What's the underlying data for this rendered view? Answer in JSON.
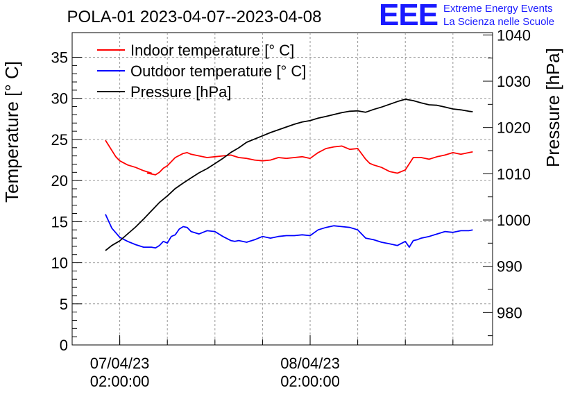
{
  "header": {
    "title": "POLA-01 2023-04-07--2023-04-08",
    "logo_mark": "EEE",
    "logo_line1": "Extreme Energy Events",
    "logo_line2": "La Scienza nelle Scuole"
  },
  "chart_data": {
    "type": "line",
    "ylabel_left": "Temperature [° C]",
    "ylabel_right": "Pressure [hPa]",
    "x_ticks": [
      {
        "line1": "07/04/23",
        "line2": "02:00:00",
        "hours": 0
      },
      {
        "line1": "08/04/23",
        "line2": "02:00:00",
        "hours": 24
      }
    ],
    "x_range_hours": [
      -6,
      47
    ],
    "y_left_range": [
      0,
      38
    ],
    "y_left_ticks": [
      0,
      5,
      10,
      15,
      20,
      25,
      30,
      35
    ],
    "y_right_range": [
      973,
      1040.5
    ],
    "y_right_ticks": [
      980,
      990,
      1000,
      1010,
      1020,
      1030,
      1040
    ],
    "grid": true,
    "legend_position": "top-left",
    "colors": {
      "indoor": "#ff0000",
      "outdoor": "#0000ff",
      "pressure": "#000000"
    },
    "series": [
      {
        "name": "Indoor temperature [° C]",
        "axis": "left",
        "x": [
          -1.8,
          -0.5,
          0,
          1,
          2,
          3,
          4,
          3.5,
          4.5,
          5,
          5.5,
          6,
          7,
          8,
          8.5,
          9,
          10,
          11,
          12,
          13,
          14,
          15,
          16,
          17,
          18,
          19,
          20,
          21,
          22,
          23,
          24,
          25,
          26,
          27,
          28,
          29,
          30,
          31,
          31.5,
          32,
          33,
          34,
          35,
          36,
          37,
          38,
          39,
          40,
          41,
          42,
          43,
          44,
          44.5
        ],
        "values": [
          24.9,
          22.9,
          22.4,
          21.9,
          21.6,
          21.2,
          20.9,
          20.9,
          20.7,
          21.0,
          21.5,
          21.8,
          22.8,
          23.3,
          23.4,
          23.2,
          23.0,
          22.8,
          22.9,
          23.0,
          23.1,
          22.8,
          22.7,
          22.5,
          22.4,
          22.5,
          22.8,
          22.7,
          22.8,
          22.9,
          22.7,
          23.4,
          23.9,
          24.1,
          24.2,
          23.8,
          23.9,
          22.6,
          22.1,
          21.9,
          21.6,
          21.1,
          20.9,
          21.3,
          22.8,
          22.8,
          22.6,
          22.9,
          23.1,
          23.4,
          23.2,
          23.4,
          23.5
        ]
      },
      {
        "name": "Outdoor temperature [° C]",
        "axis": "left",
        "x": [
          -1.8,
          -1,
          0,
          1,
          2,
          3,
          4,
          4.5,
          5,
          5.5,
          6,
          6.5,
          7,
          7.5,
          8,
          8.5,
          9,
          10,
          11,
          12,
          13,
          14,
          14.5,
          15,
          16,
          17,
          18,
          19,
          20,
          21,
          22,
          23,
          24,
          25,
          26,
          27,
          28,
          29,
          30,
          31,
          32,
          33,
          34,
          35,
          36,
          36.5,
          37,
          37.5,
          38,
          39,
          40,
          41,
          42,
          43,
          44,
          44.5
        ],
        "values": [
          15.9,
          14.2,
          13.1,
          12.6,
          12.2,
          11.9,
          11.9,
          11.8,
          12.1,
          12.6,
          12.4,
          13.2,
          13.4,
          14.1,
          14.4,
          14.3,
          13.8,
          13.5,
          13.9,
          13.8,
          13.2,
          12.7,
          12.6,
          12.7,
          12.5,
          12.8,
          13.2,
          13.0,
          13.2,
          13.3,
          13.3,
          13.4,
          13.3,
          14.0,
          14.3,
          14.5,
          14.4,
          14.3,
          14.0,
          13.0,
          12.8,
          12.5,
          12.3,
          12.1,
          12.6,
          11.9,
          12.7,
          12.8,
          13.0,
          13.2,
          13.5,
          13.8,
          13.7,
          13.9,
          13.9,
          14.0
        ]
      },
      {
        "name": "Pressure [hPa]",
        "axis": "right",
        "x": [
          -1.8,
          -1,
          0,
          1,
          2,
          3,
          4,
          5,
          6,
          7,
          8,
          9,
          10,
          11,
          12,
          13,
          14,
          15,
          16,
          17,
          18,
          19,
          20,
          21,
          22,
          23,
          24,
          25,
          26,
          27,
          28,
          29,
          30,
          31,
          32,
          33,
          34,
          35,
          36,
          37,
          38,
          39,
          40,
          41,
          42,
          43,
          44,
          44.5
        ],
        "values": [
          993.4,
          994.5,
          995.5,
          997.0,
          998.5,
          1000.2,
          1002.0,
          1003.8,
          1005.2,
          1006.8,
          1008.0,
          1009.1,
          1010.2,
          1011.1,
          1012.2,
          1013.3,
          1014.6,
          1015.6,
          1016.8,
          1017.5,
          1018.2,
          1018.9,
          1019.5,
          1020.1,
          1020.7,
          1021.2,
          1021.5,
          1022.0,
          1022.4,
          1022.8,
          1023.2,
          1023.5,
          1023.6,
          1023.3,
          1023.9,
          1024.4,
          1025.0,
          1025.6,
          1026.1,
          1025.8,
          1025.3,
          1024.9,
          1024.8,
          1024.4,
          1024.0,
          1023.8,
          1023.5,
          1023.4
        ]
      }
    ]
  }
}
